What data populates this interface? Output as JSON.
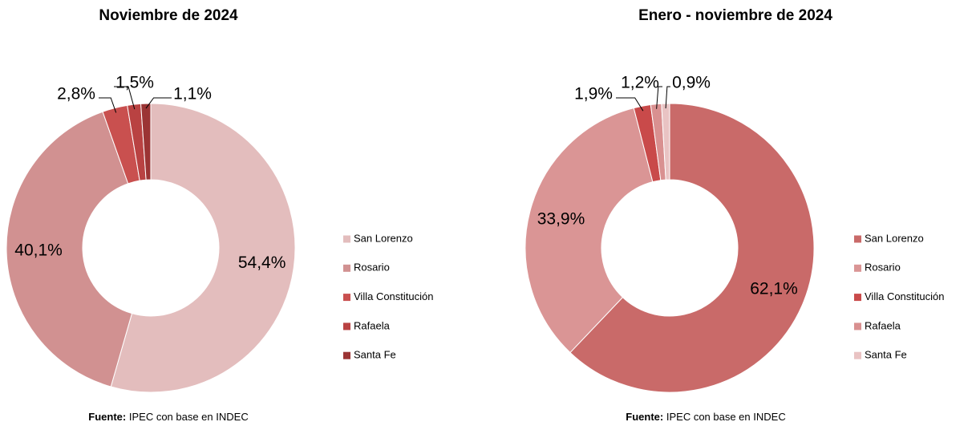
{
  "chart_data": [
    {
      "type": "donut",
      "title": "Noviembre de 2024",
      "categories": [
        "San Lorenzo",
        "Rosario",
        "Villa Constitución",
        "Rafaela",
        "Santa Fe"
      ],
      "values": [
        54.4,
        40.1,
        2.8,
        1.5,
        1.1
      ],
      "value_labels": [
        "54,4%",
        "40,1%",
        "2,8%",
        "1,5%",
        "1,1%"
      ],
      "colors": [
        "#e3bdbd",
        "#d19191",
        "#c9504f",
        "#b94242",
        "#9b3434"
      ],
      "legend": "right",
      "source_label": "Fuente:",
      "source": "IPEC con base en INDEC"
    },
    {
      "type": "donut",
      "title": "Enero - noviembre de 2024",
      "categories": [
        "San Lorenzo",
        "Rosario",
        "Villa Constitución",
        "Rafaela",
        "Santa Fe"
      ],
      "values": [
        62.1,
        33.9,
        1.9,
        1.2,
        0.9
      ],
      "value_labels": [
        "62,1%",
        "33,9%",
        "1,9%",
        "1,2%",
        "0,9%"
      ],
      "colors": [
        "#c96a69",
        "#da9595",
        "#c94a4a",
        "#d99090",
        "#e9c3c3"
      ],
      "legend": "right",
      "source_label": "Fuente:",
      "source": "IPEC con base en INDEC"
    }
  ]
}
